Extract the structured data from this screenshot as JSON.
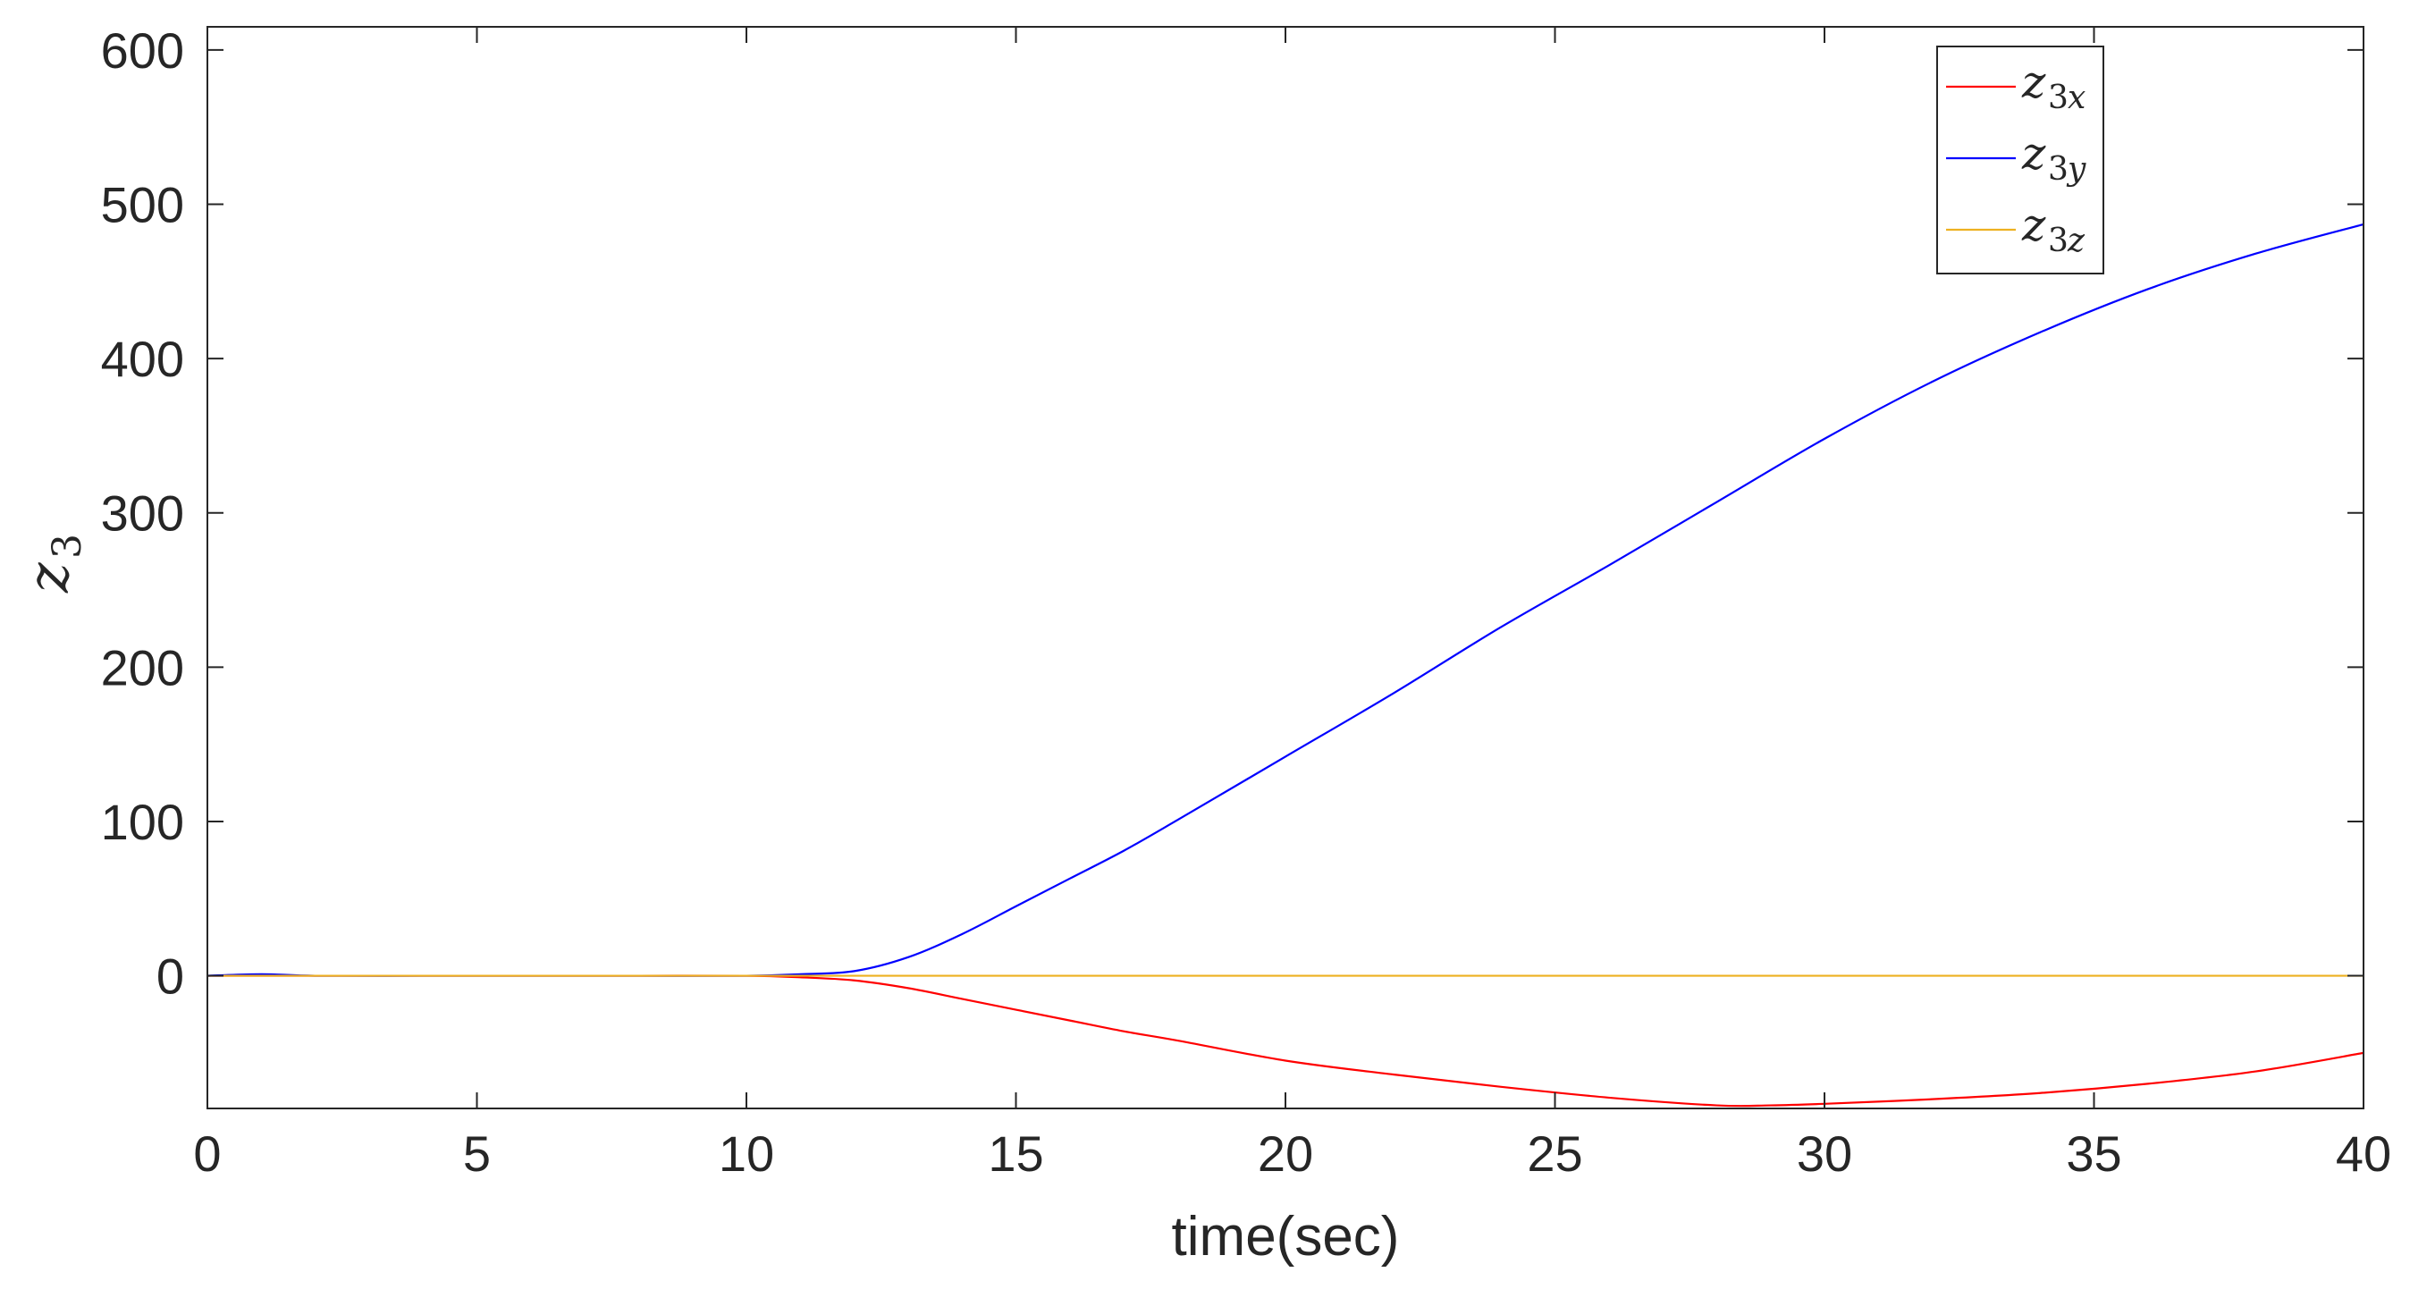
{
  "chart_data": {
    "type": "line",
    "title": "",
    "xlabel": "time(sec)",
    "ylabel_base": "z",
    "ylabel_sub": "3",
    "xlim": [
      0,
      40
    ],
    "ylim": [
      -86,
      615
    ],
    "xticks": [
      0,
      5,
      10,
      15,
      20,
      25,
      30,
      35,
      40
    ],
    "yticks": [
      0,
      100,
      200,
      300,
      400,
      500,
      600
    ],
    "grid": false,
    "legend_position": "top-right",
    "series": [
      {
        "name": "z3x",
        "label_base": "z",
        "label_sub": "3",
        "label_sub_italic": "x",
        "color": "#ff0000",
        "x": [
          0,
          1,
          2,
          4,
          6,
          8,
          10,
          11,
          12,
          13,
          14,
          15,
          16,
          17,
          18,
          20,
          22,
          24,
          26,
          28,
          29,
          30,
          32,
          34,
          36,
          38,
          40
        ],
        "y": [
          0,
          0,
          0,
          0,
          0,
          0,
          0,
          -1,
          -3,
          -8,
          -15,
          -22,
          -29,
          -36,
          -42,
          -55,
          -64,
          -72,
          -79,
          -84,
          -84,
          -83,
          -80,
          -76,
          -70,
          -62,
          -50
        ]
      },
      {
        "name": "z3y",
        "label_base": "z",
        "label_sub": "3",
        "label_sub_italic": "y",
        "color": "#0000ff",
        "x": [
          0,
          1,
          2,
          4,
          6,
          8,
          10,
          11,
          12,
          13,
          14,
          15,
          16,
          17,
          18,
          20,
          22,
          24,
          26,
          28,
          30,
          32,
          34,
          36,
          38,
          40
        ],
        "y": [
          0,
          1,
          0,
          0,
          0,
          0,
          0,
          1,
          3,
          12,
          27,
          45,
          63,
          81,
          101,
          142,
          183,
          226,
          266,
          307,
          348,
          385,
          417,
          445,
          468,
          487
        ]
      },
      {
        "name": "z3z",
        "label_base": "z",
        "label_sub": "3",
        "label_sub_italic": "z",
        "color": "#edb120",
        "x": [
          0,
          40
        ],
        "y": [
          0,
          0
        ]
      }
    ]
  }
}
